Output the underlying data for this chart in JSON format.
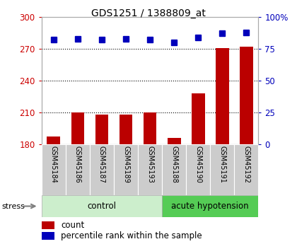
{
  "title": "GDS1251 / 1388809_at",
  "samples": [
    "GSM45184",
    "GSM45186",
    "GSM45187",
    "GSM45189",
    "GSM45193",
    "GSM45188",
    "GSM45190",
    "GSM45191",
    "GSM45192"
  ],
  "count_values": [
    187,
    210,
    208,
    208,
    210,
    186,
    228,
    271,
    272
  ],
  "percentile_values": [
    82,
    83,
    82,
    83,
    82,
    80,
    84,
    87,
    88
  ],
  "ylim_left": [
    180,
    300
  ],
  "ylim_right": [
    0,
    100
  ],
  "yticks_left": [
    180,
    210,
    240,
    270,
    300
  ],
  "yticks_right": [
    0,
    25,
    50,
    75,
    100
  ],
  "bar_color": "#bb0000",
  "dot_color": "#0000bb",
  "xlabel_color": "#cc0000",
  "right_axis_color": "#0000bb",
  "legend_count_color": "#bb0000",
  "legend_pct_color": "#0000bb",
  "control_color": "#cceecc",
  "acute_color": "#55cc55",
  "sample_box_color": "#cccccc",
  "grid_linestyle": ":",
  "grid_color": "black",
  "grid_linewidth": 0.8,
  "bar_width": 0.55,
  "dot_size": 6
}
